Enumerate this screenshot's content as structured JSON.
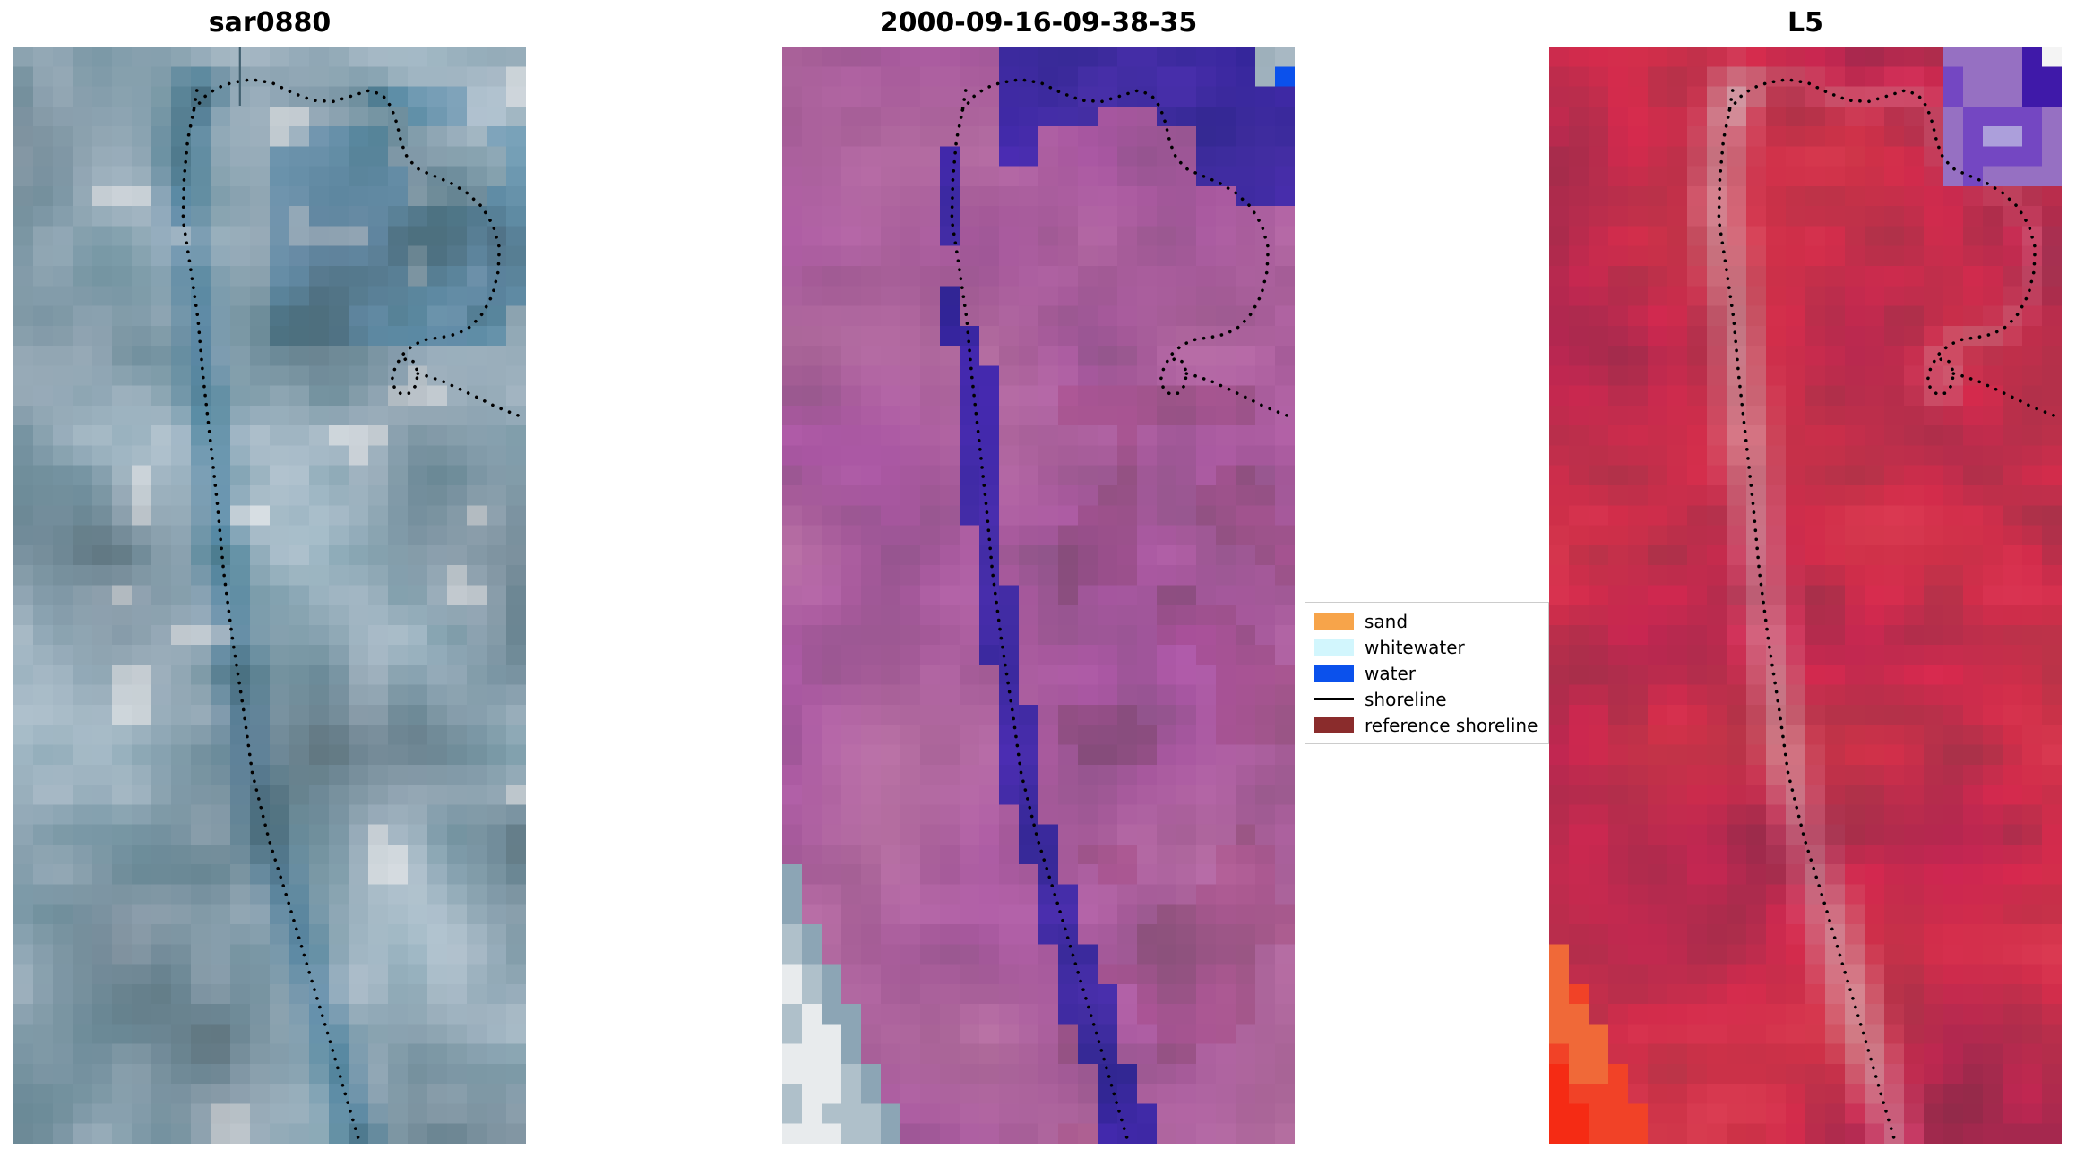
{
  "figure": {
    "background": "#ffffff",
    "panels": [
      {
        "title": "sar0880",
        "kind": "sar"
      },
      {
        "title": "2000-09-16-09-38-35",
        "kind": "optical"
      },
      {
        "title": "L5",
        "kind": "l5"
      }
    ],
    "legend": {
      "entries": [
        {
          "label": "sand",
          "color": "#f7a44a",
          "swatch": "patch"
        },
        {
          "label": "whitewater",
          "color": "#d2f6fd",
          "swatch": "patch"
        },
        {
          "label": "water",
          "color": "#0b51ec",
          "swatch": "patch"
        },
        {
          "label": "shoreline",
          "color": "#000000",
          "swatch": "line"
        },
        {
          "label": "reference shoreline",
          "color": "#8a2c2c",
          "swatch": "patch"
        }
      ]
    }
  },
  "chart_data": {
    "type": "heatmap",
    "title": "",
    "panels": [
      {
        "title": "sar0880",
        "content": "SAR backscatter satellite image, pale blue-gray mottled texture with darker channel, dotted detected shoreline overlay"
      },
      {
        "title": "2000-09-16-09-38-35",
        "content": "optical satellite image, magenta-purple land, indigo water patches at top and winding indigo channel to bottom, bright blue pixel top-right, gray corner top-right, white-gray patch bottom-left, dotted shoreline overlay"
      },
      {
        "title": "L5",
        "content": "Landsat 5 false-colour image, crimson land with lighter pink channel streak, purple-indigo patches top-right, bright red-orange patch bottom-left, dotted shoreline overlay"
      }
    ],
    "legend": {
      "position": "center, attached left of third panel",
      "entries": [
        "sand",
        "whitewater",
        "water",
        "shoreline",
        "reference shoreline"
      ]
    }
  },
  "shoreline": {
    "descend": [
      [
        0.358,
        0.04
      ],
      [
        0.352,
        0.058
      ],
      [
        0.34,
        0.085
      ],
      [
        0.333,
        0.12
      ],
      [
        0.331,
        0.158
      ],
      [
        0.345,
        0.2
      ],
      [
        0.36,
        0.248
      ],
      [
        0.37,
        0.3
      ],
      [
        0.384,
        0.358
      ],
      [
        0.398,
        0.418
      ],
      [
        0.41,
        0.478
      ],
      [
        0.428,
        0.542
      ],
      [
        0.448,
        0.602
      ],
      [
        0.466,
        0.662
      ],
      [
        0.498,
        0.722
      ],
      [
        0.538,
        0.782
      ],
      [
        0.576,
        0.842
      ],
      [
        0.616,
        0.904
      ],
      [
        0.652,
        0.962
      ],
      [
        0.676,
        1.0
      ]
    ],
    "hook": [
      [
        0.352,
        0.058
      ],
      [
        0.372,
        0.046
      ],
      [
        0.396,
        0.038
      ],
      [
        0.426,
        0.033
      ],
      [
        0.464,
        0.03
      ],
      [
        0.504,
        0.033
      ],
      [
        0.544,
        0.042
      ],
      [
        0.584,
        0.049
      ],
      [
        0.624,
        0.05
      ],
      [
        0.66,
        0.045
      ],
      [
        0.694,
        0.04
      ],
      [
        0.72,
        0.044
      ],
      [
        0.737,
        0.055
      ],
      [
        0.748,
        0.07
      ],
      [
        0.757,
        0.088
      ],
      [
        0.769,
        0.102
      ],
      [
        0.791,
        0.112
      ],
      [
        0.821,
        0.118
      ],
      [
        0.852,
        0.124
      ],
      [
        0.884,
        0.133
      ],
      [
        0.914,
        0.146
      ],
      [
        0.936,
        0.163
      ],
      [
        0.948,
        0.183
      ],
      [
        0.946,
        0.205
      ],
      [
        0.935,
        0.226
      ],
      [
        0.916,
        0.243
      ],
      [
        0.893,
        0.255
      ],
      [
        0.866,
        0.262
      ],
      [
        0.836,
        0.265
      ],
      [
        0.806,
        0.267
      ],
      [
        0.78,
        0.272
      ],
      [
        0.759,
        0.281
      ],
      [
        0.745,
        0.292
      ],
      [
        0.739,
        0.303
      ],
      [
        0.744,
        0.312
      ],
      [
        0.757,
        0.317
      ],
      [
        0.773,
        0.316
      ],
      [
        0.785,
        0.309
      ],
      [
        0.789,
        0.298
      ],
      [
        0.783,
        0.288
      ],
      [
        0.769,
        0.284
      ],
      [
        0.756,
        0.287
      ]
    ],
    "exit": [
      [
        0.789,
        0.298
      ],
      [
        0.812,
        0.301
      ],
      [
        0.842,
        0.306
      ],
      [
        0.874,
        0.313
      ],
      [
        0.906,
        0.32
      ],
      [
        0.94,
        0.328
      ],
      [
        0.972,
        0.334
      ],
      [
        1.0,
        0.339
      ]
    ]
  }
}
